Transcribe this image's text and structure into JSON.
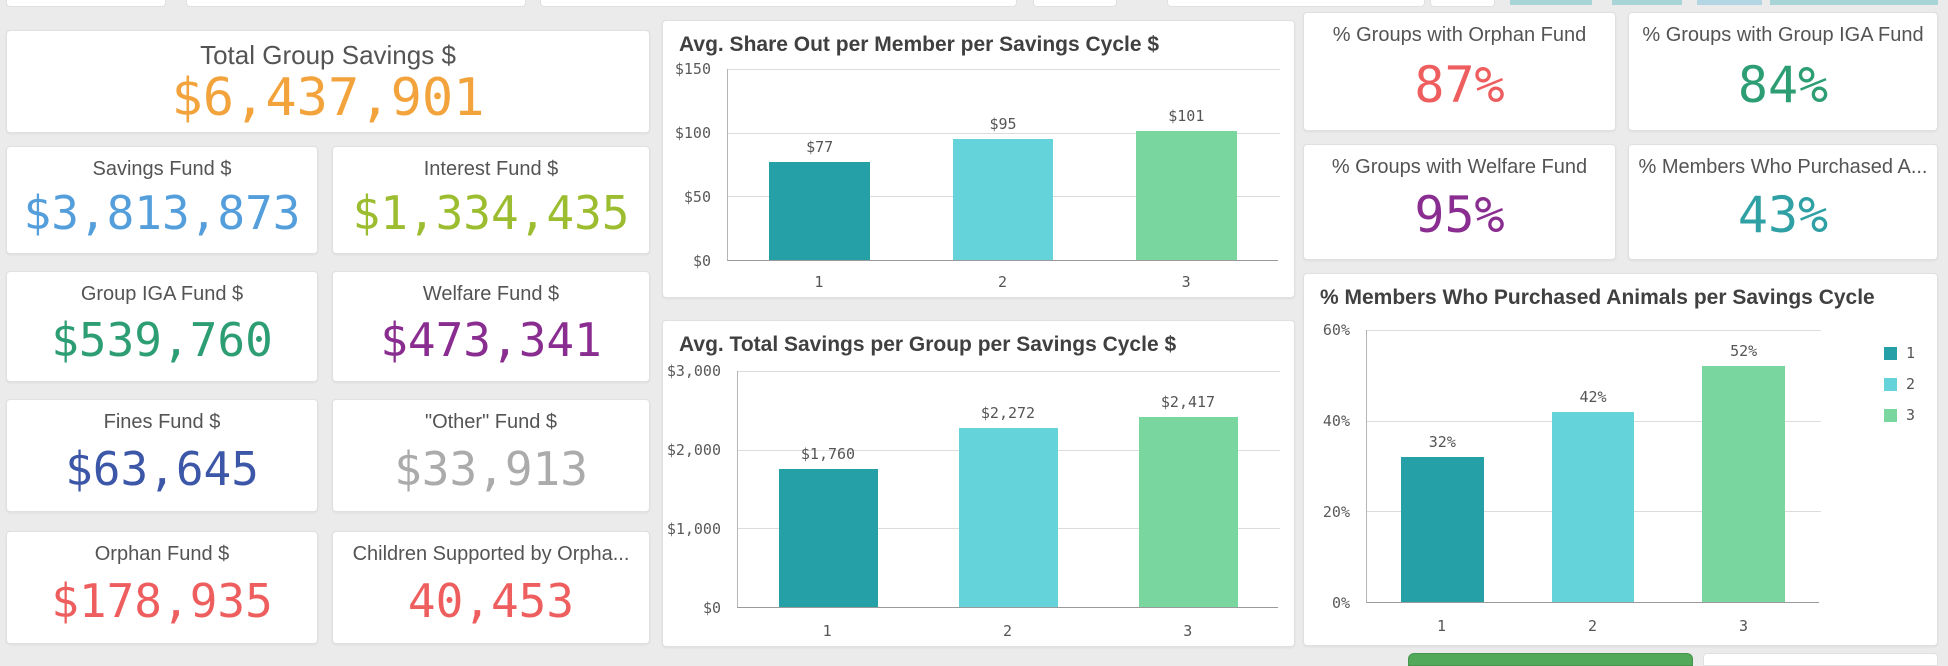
{
  "theme": {
    "background": "#ebebeb",
    "card_background": "#ffffff",
    "label_color": "#545454",
    "chart_title_color": "#404040",
    "axis_text_color": "#5a5a5a",
    "bottom_green_bar_color": "#52a95a",
    "top_sliver_teal": "#a8d4d8",
    "top_sliver_blue": "#b4d6e2"
  },
  "kpis": [
    {
      "label": "Total Group Savings $",
      "value": "$6,437,901",
      "color": "#f2a33c"
    },
    {
      "label": "Savings Fund $",
      "value": "$3,813,873",
      "color": "#549fdb"
    },
    {
      "label": "Interest Fund $",
      "value": "$1,334,435",
      "color": "#9cbd2f"
    },
    {
      "label": "Group IGA Fund $",
      "value": "$539,760",
      "color": "#2d9e74"
    },
    {
      "label": "Welfare Fund $",
      "value": "$473,341",
      "color": "#8a2d90"
    },
    {
      "label": "Fines Fund $",
      "value": "$63,645",
      "color": "#3d57a8"
    },
    {
      "label": "\"Other\" Fund $",
      "value": "$33,913",
      "color": "#ababab"
    },
    {
      "label": "Orphan Fund $",
      "value": "$178,935",
      "color": "#ef5e5e"
    },
    {
      "label": "Children Supported by Orpha...",
      "value": "40,453",
      "color": "#ef5e5e"
    },
    {
      "label": "% Groups with Orphan Fund",
      "value": "87%",
      "color": "#ef5e5e"
    },
    {
      "label": "% Groups with Group IGA Fund",
      "value": "84%",
      "color": "#2d9e74"
    },
    {
      "label": "% Groups with Welfare Fund",
      "value": "95%",
      "color": "#8a2d90"
    },
    {
      "label": "% Members Who Purchased A...",
      "value": "43%",
      "color": "#2fa0a4"
    }
  ],
  "chart_data": [
    {
      "type": "bar",
      "title": "Avg. Share Out per Member per Savings Cycle $",
      "categories": [
        "1",
        "2",
        "3"
      ],
      "values": [
        77,
        95,
        101
      ],
      "bar_labels": [
        "$77",
        "$95",
        "$101"
      ],
      "yticks": [
        "$150",
        "$100",
        "$50",
        "$0"
      ],
      "ylim": [
        0,
        150
      ],
      "grid": true,
      "legend": null,
      "bar_colors": [
        "#26a0a7",
        "#65d3da",
        "#79d69f"
      ]
    },
    {
      "type": "bar",
      "title": "Avg. Total Savings per Group per Savings Cycle $",
      "categories": [
        "1",
        "2",
        "3"
      ],
      "values": [
        1760,
        2272,
        2417
      ],
      "bar_labels": [
        "$1,760",
        "$2,272",
        "$2,417"
      ],
      "yticks": [
        "$3,000",
        "$2,000",
        "$1,000",
        "$0"
      ],
      "ylim": [
        0,
        3000
      ],
      "grid": true,
      "legend": null,
      "bar_colors": [
        "#26a0a7",
        "#65d3da",
        "#79d69f"
      ]
    },
    {
      "type": "bar",
      "title": "% Members Who Purchased Animals per Savings Cycle",
      "categories": [
        "1",
        "2",
        "3"
      ],
      "values": [
        32,
        42,
        52
      ],
      "bar_labels": [
        "32%",
        "42%",
        "52%"
      ],
      "yticks": [
        "60%",
        "40%",
        "20%",
        "0%"
      ],
      "ylim": [
        0,
        60
      ],
      "grid": true,
      "legend": [
        "1",
        "2",
        "3"
      ],
      "legend_position": "right",
      "bar_colors": [
        "#26a0a7",
        "#65d3da",
        "#79d69f"
      ]
    }
  ]
}
